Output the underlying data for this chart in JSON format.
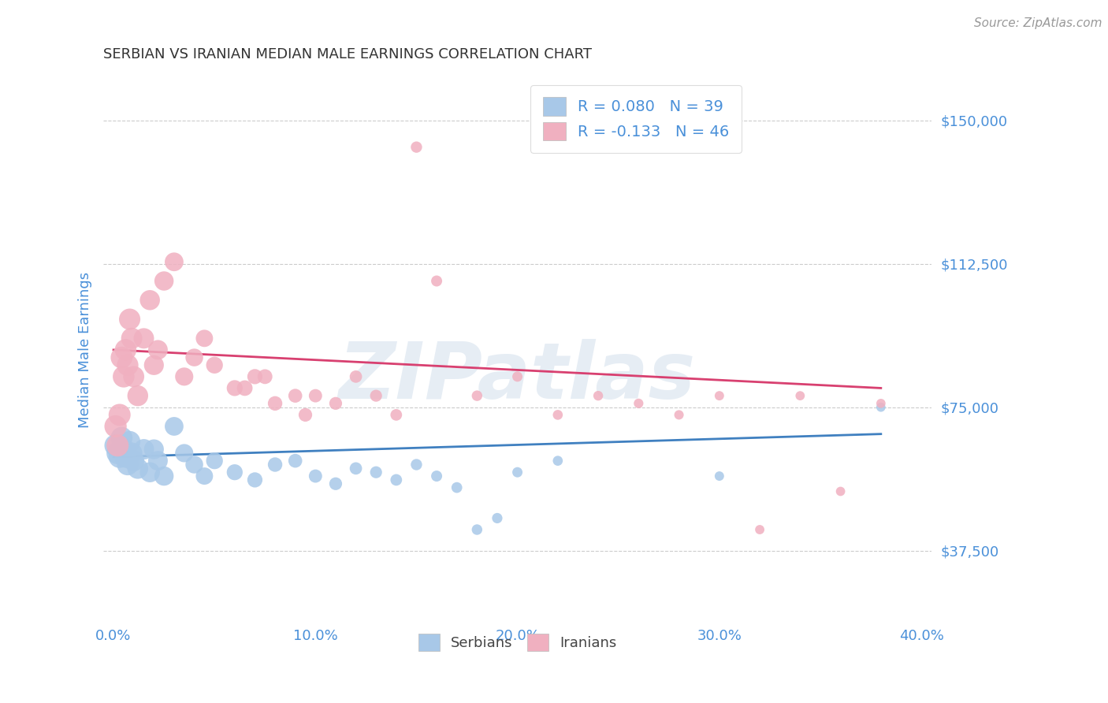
{
  "title": "SERBIAN VS IRANIAN MEDIAN MALE EARNINGS CORRELATION CHART",
  "source_text": "Source: ZipAtlas.com",
  "ylabel": "Median Male Earnings",
  "xlim": [
    -0.005,
    0.405
  ],
  "ylim": [
    18000,
    162000
  ],
  "yticks": [
    37500,
    75000,
    112500,
    150000
  ],
  "ytick_labels": [
    "$37,500",
    "$75,000",
    "$112,500",
    "$150,000"
  ],
  "xticks": [
    0.0,
    0.1,
    0.2,
    0.3,
    0.4
  ],
  "xtick_labels": [
    "0.0%",
    "10.0%",
    "20.0%",
    "30.0%",
    "40.0%"
  ],
  "watermark": "ZIPatlas",
  "serbian_color": "#a8c8e8",
  "iranian_color": "#f0b0c0",
  "serbian_line_color": "#4080c0",
  "iranian_line_color": "#d84070",
  "serbian_R": 0.08,
  "serbian_N": 39,
  "iranian_R": -0.133,
  "iranian_N": 46,
  "serbian_points": [
    [
      0.001,
      65000
    ],
    [
      0.002,
      63000
    ],
    [
      0.003,
      62000
    ],
    [
      0.004,
      67000
    ],
    [
      0.005,
      64000
    ],
    [
      0.006,
      62000
    ],
    [
      0.007,
      60000
    ],
    [
      0.008,
      66000
    ],
    [
      0.009,
      63000
    ],
    [
      0.01,
      61000
    ],
    [
      0.012,
      59000
    ],
    [
      0.015,
      64000
    ],
    [
      0.018,
      58000
    ],
    [
      0.02,
      64000
    ],
    [
      0.022,
      61000
    ],
    [
      0.025,
      57000
    ],
    [
      0.03,
      70000
    ],
    [
      0.035,
      63000
    ],
    [
      0.04,
      60000
    ],
    [
      0.045,
      57000
    ],
    [
      0.05,
      61000
    ],
    [
      0.06,
      58000
    ],
    [
      0.07,
      56000
    ],
    [
      0.08,
      60000
    ],
    [
      0.09,
      61000
    ],
    [
      0.1,
      57000
    ],
    [
      0.11,
      55000
    ],
    [
      0.12,
      59000
    ],
    [
      0.13,
      58000
    ],
    [
      0.14,
      56000
    ],
    [
      0.15,
      60000
    ],
    [
      0.16,
      57000
    ],
    [
      0.17,
      54000
    ],
    [
      0.18,
      43000
    ],
    [
      0.19,
      46000
    ],
    [
      0.2,
      58000
    ],
    [
      0.22,
      61000
    ],
    [
      0.3,
      57000
    ],
    [
      0.38,
      75000
    ]
  ],
  "iranian_points": [
    [
      0.001,
      70000
    ],
    [
      0.002,
      65000
    ],
    [
      0.003,
      73000
    ],
    [
      0.004,
      88000
    ],
    [
      0.005,
      83000
    ],
    [
      0.006,
      90000
    ],
    [
      0.007,
      86000
    ],
    [
      0.008,
      98000
    ],
    [
      0.009,
      93000
    ],
    [
      0.01,
      83000
    ],
    [
      0.012,
      78000
    ],
    [
      0.015,
      93000
    ],
    [
      0.018,
      103000
    ],
    [
      0.02,
      86000
    ],
    [
      0.022,
      90000
    ],
    [
      0.025,
      108000
    ],
    [
      0.03,
      113000
    ],
    [
      0.035,
      83000
    ],
    [
      0.04,
      88000
    ],
    [
      0.045,
      93000
    ],
    [
      0.05,
      86000
    ],
    [
      0.06,
      80000
    ],
    [
      0.065,
      80000
    ],
    [
      0.07,
      83000
    ],
    [
      0.075,
      83000
    ],
    [
      0.08,
      76000
    ],
    [
      0.09,
      78000
    ],
    [
      0.095,
      73000
    ],
    [
      0.1,
      78000
    ],
    [
      0.11,
      76000
    ],
    [
      0.12,
      83000
    ],
    [
      0.13,
      78000
    ],
    [
      0.14,
      73000
    ],
    [
      0.15,
      143000
    ],
    [
      0.16,
      108000
    ],
    [
      0.18,
      78000
    ],
    [
      0.2,
      83000
    ],
    [
      0.22,
      73000
    ],
    [
      0.24,
      78000
    ],
    [
      0.26,
      76000
    ],
    [
      0.28,
      73000
    ],
    [
      0.3,
      78000
    ],
    [
      0.32,
      43000
    ],
    [
      0.34,
      78000
    ],
    [
      0.36,
      53000
    ],
    [
      0.38,
      76000
    ]
  ],
  "background_color": "#ffffff",
  "grid_color": "#cccccc",
  "title_color": "#333333",
  "axis_label_color": "#4a90d9",
  "tick_label_color": "#4a90d9"
}
